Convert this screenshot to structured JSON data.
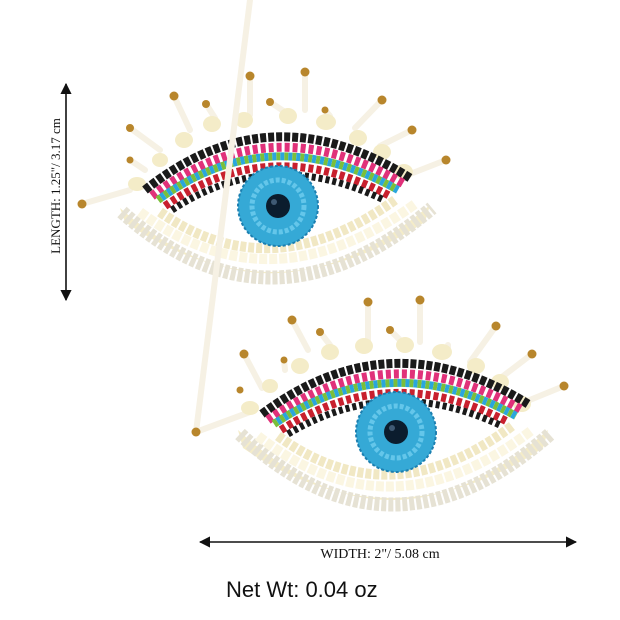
{
  "product": {
    "dimensions": {
      "length_label": "LENGTH: 1.25\"/ 3.17 cm",
      "width_label": "WIDTH: 2\"/ 5.08 cm"
    },
    "net_weight_label": "Net Wt: 0.04 oz"
  },
  "colors": {
    "background": "#ffffff",
    "iris": "#35a9d6",
    "pupil": "#0b1d2e",
    "white_beads": "#ece8d8",
    "cream_beads": "#f4ecc8",
    "gold_tips": "#b8862c",
    "accent_pink": "#e0317a",
    "accent_green": "#7bbf3a",
    "accent_black": "#1a1a1a",
    "accent_red": "#c8202e",
    "accent_blue": "#2aa6dc"
  }
}
